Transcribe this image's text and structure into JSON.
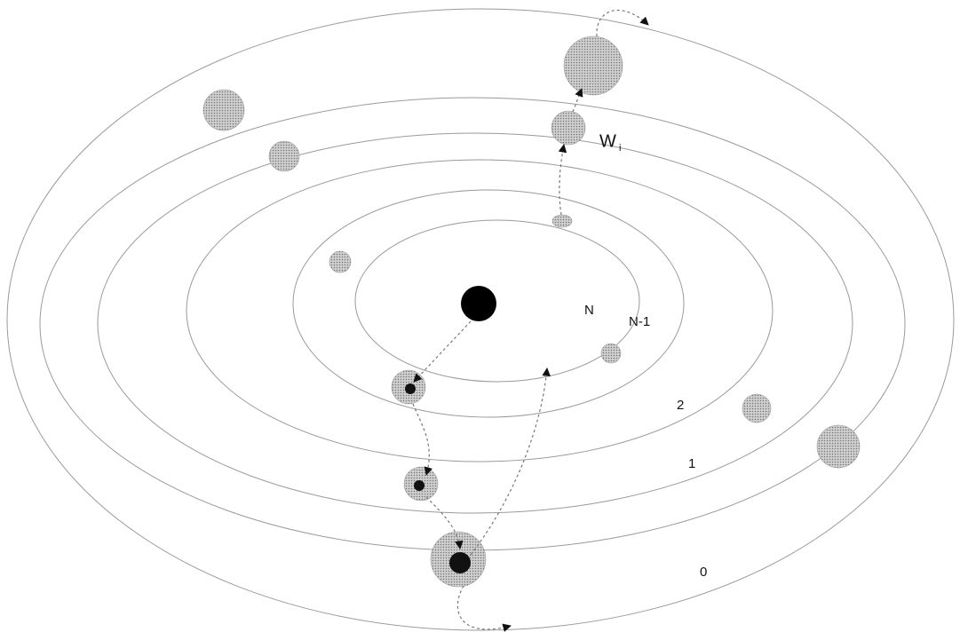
{
  "labels": {
    "w": "W",
    "w_sub": "i",
    "n": "N",
    "n_minus_1": "N-1",
    "ring2": "2",
    "ring1": "1",
    "ring0": "0"
  }
}
